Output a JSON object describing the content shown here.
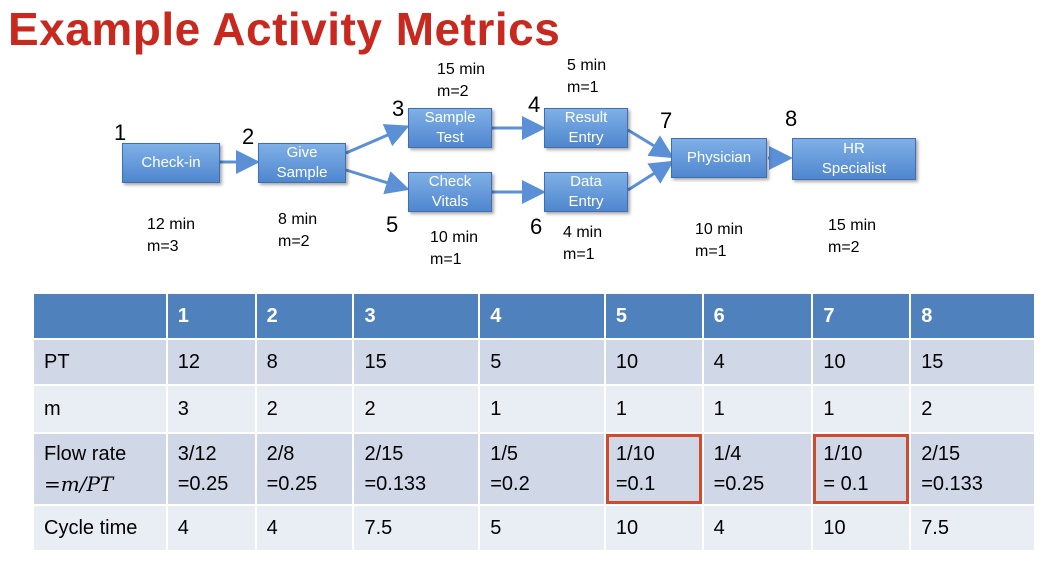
{
  "title": "Example Activity Metrics",
  "flow": {
    "nodes": [
      {
        "num": "1",
        "label": [
          "Check-in"
        ],
        "time": "12 min",
        "m": "m=3"
      },
      {
        "num": "2",
        "label": [
          "Give",
          "Sample"
        ],
        "time": "8 min",
        "m": "m=2"
      },
      {
        "num": "3",
        "label": [
          "Sample",
          "Test"
        ],
        "time": "15 min",
        "m": "m=2"
      },
      {
        "num": "4",
        "label": [
          "Result",
          "Entry"
        ],
        "time": "5 min",
        "m": "m=1"
      },
      {
        "num": "5",
        "label": [
          "Check",
          "Vitals"
        ],
        "time": "10 min",
        "m": "m=1"
      },
      {
        "num": "6",
        "label": [
          "Data",
          "Entry"
        ],
        "time": "4 min",
        "m": "m=1"
      },
      {
        "num": "7",
        "label": [
          "Physician"
        ],
        "time": "10 min",
        "m": "m=1"
      },
      {
        "num": "8",
        "label": [
          "HR",
          "Specialist"
        ],
        "time": "15 min",
        "m": "m=2"
      }
    ]
  },
  "table": {
    "headers": [
      "",
      "1",
      "2",
      "3",
      "4",
      "5",
      "6",
      "7",
      "8"
    ],
    "rows": [
      {
        "label": "PT",
        "values": [
          "12",
          "8",
          "15",
          "5",
          "10",
          "4",
          "10",
          "15"
        ]
      },
      {
        "label": "m",
        "values": [
          "3",
          "2",
          "2",
          "1",
          "1",
          "1",
          "1",
          "2"
        ]
      },
      {
        "label": "Flow rate",
        "label2": "=m/PT",
        "values": [
          [
            "3/12",
            "=0.25"
          ],
          [
            "2/8",
            "=0.25"
          ],
          [
            "2/15",
            "=0.133"
          ],
          [
            "1/5",
            "=0.2"
          ],
          [
            "1/10",
            "=0.1"
          ],
          [
            "1/4",
            "=0.25"
          ],
          [
            "1/10",
            "= 0.1"
          ],
          [
            "2/15",
            "=0.133"
          ]
        ]
      },
      {
        "label": "Cycle time",
        "values": [
          "4",
          "4",
          "7.5",
          "5",
          "10",
          "4",
          "10",
          "7.5"
        ]
      }
    ]
  },
  "colors": {
    "title": "#c8281e",
    "node": "#5b8fd6",
    "header": "#4f81bd",
    "highlight": "#d24a2e"
  }
}
